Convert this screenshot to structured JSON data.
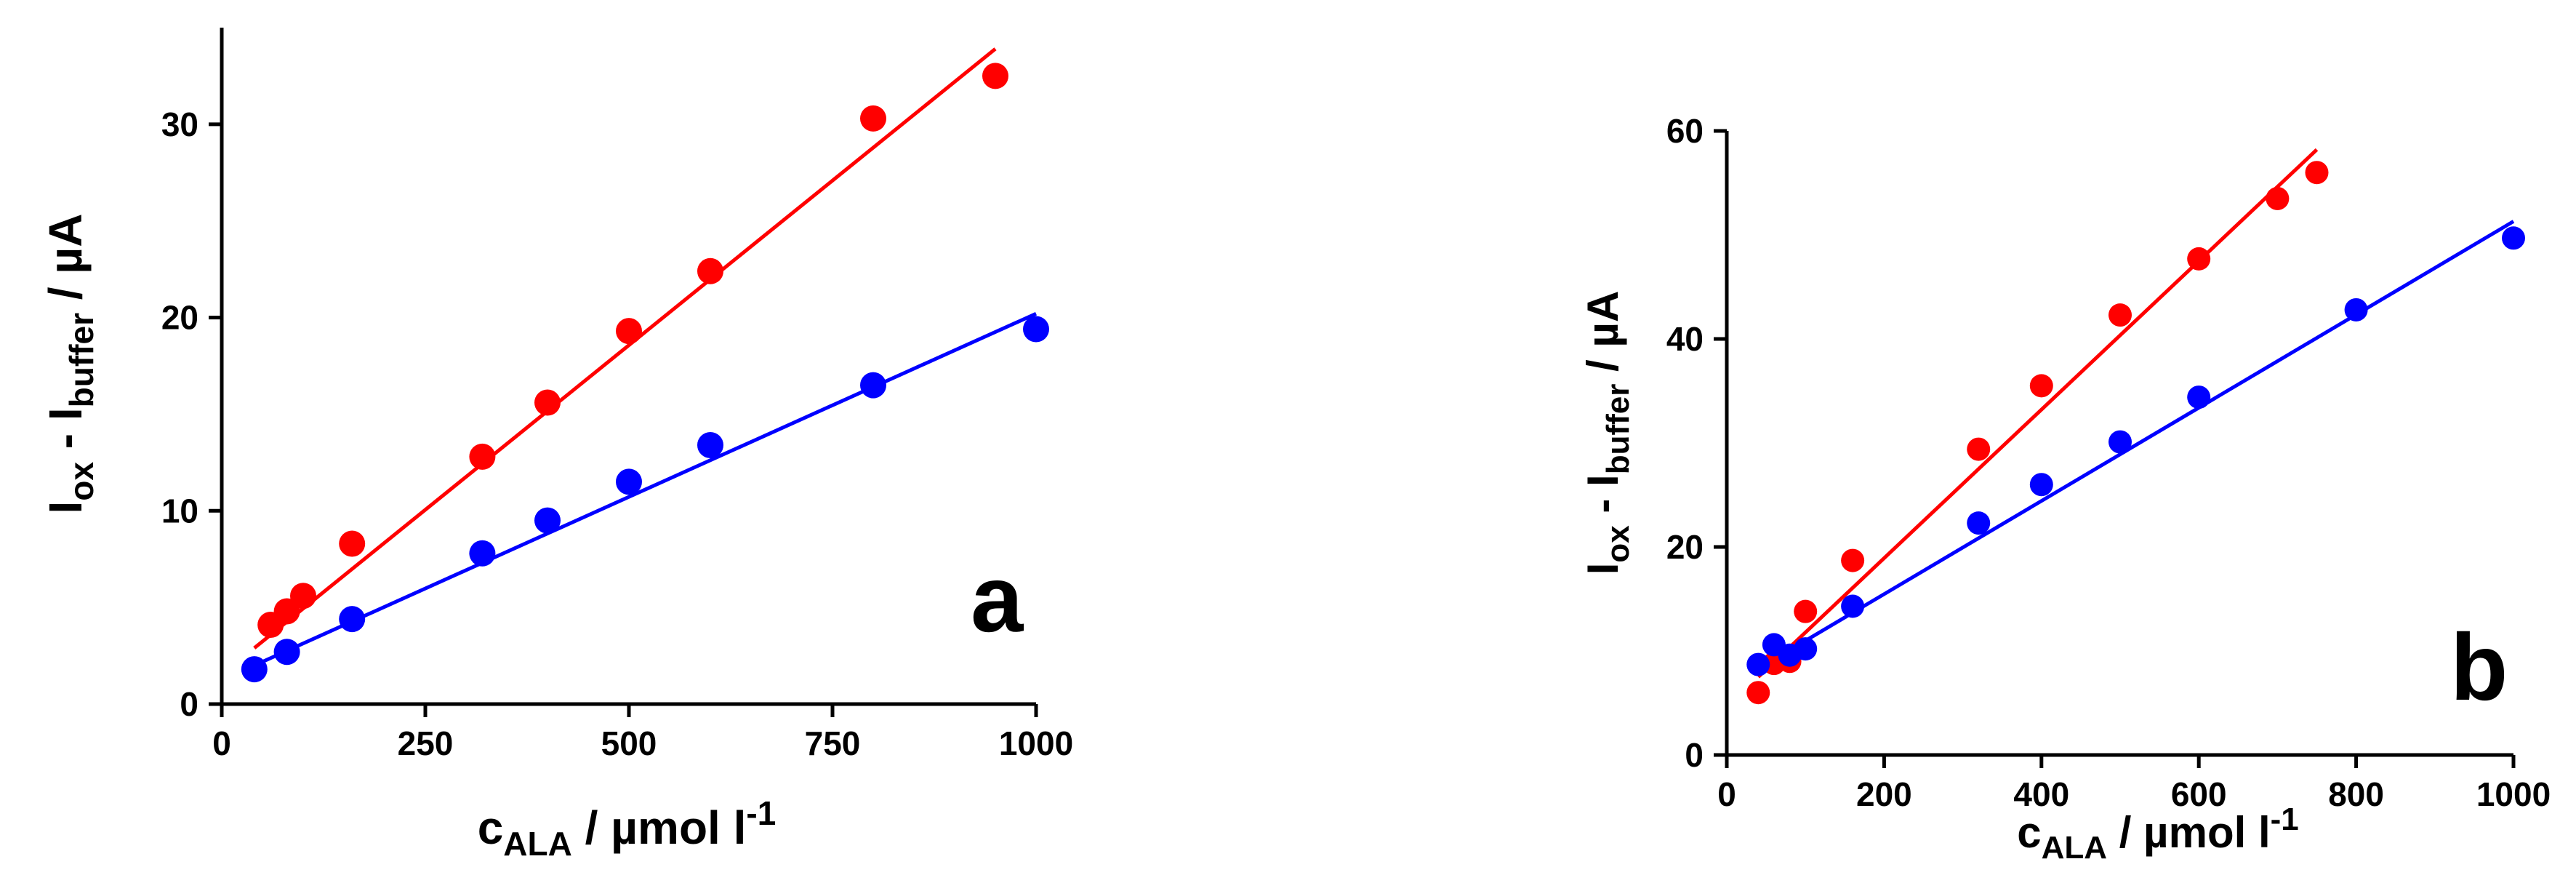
{
  "chart_data": [
    {
      "type": "scatter",
      "panel_label": "a",
      "xlabel": {
        "main": "c",
        "sub": "ALA",
        "rest": " / µmol l",
        "sup": "-1"
      },
      "ylabel": {
        "i1": "I",
        "s1": "ox",
        "mid": " - I",
        "s2": "buffer",
        "rest": " / µA"
      },
      "xlim": [
        0,
        1000
      ],
      "ylim": [
        0,
        35
      ],
      "xticks": [
        0,
        250,
        500,
        750,
        1000
      ],
      "xtick_labels": [
        "0",
        "250",
        "500",
        "750",
        "1000"
      ],
      "yticks": [
        0,
        10,
        20,
        30
      ],
      "ytick_labels": [
        "0",
        "10",
        "20",
        "30"
      ],
      "grid": false,
      "series": [
        {
          "name": "red",
          "color": "#ff0000",
          "x": [
            60,
            80,
            100,
            160,
            320,
            400,
            500,
            600,
            800,
            950
          ],
          "y": [
            4.1,
            4.8,
            5.6,
            8.3,
            12.8,
            15.6,
            19.3,
            22.4,
            30.3,
            32.5
          ],
          "fit": {
            "x": [
              40,
              950
            ],
            "y": [
              2.9,
              33.9
            ]
          }
        },
        {
          "name": "blue",
          "color": "#0000ff",
          "x": [
            40,
            80,
            160,
            320,
            400,
            500,
            600,
            800,
            1000
          ],
          "y": [
            1.8,
            2.7,
            4.4,
            7.8,
            9.5,
            11.5,
            13.4,
            16.5,
            19.4
          ],
          "fit": {
            "x": [
              40,
              1000
            ],
            "y": [
              2.0,
              20.2
            ]
          }
        }
      ]
    },
    {
      "type": "scatter",
      "panel_label": "b",
      "xlabel": {
        "main": "c",
        "sub": "ALA",
        "rest": " / µmol l",
        "sup": "-1"
      },
      "ylabel": {
        "i1": "I",
        "s1": "ox",
        "mid": " - I",
        "s2": "buffer",
        "rest": " / µA"
      },
      "xlim": [
        0,
        1000
      ],
      "ylim": [
        0,
        60
      ],
      "xticks": [
        0,
        200,
        400,
        600,
        800,
        1000
      ],
      "xtick_labels": [
        "0",
        "200",
        "400",
        "600",
        "800",
        "1000"
      ],
      "yticks": [
        0,
        20,
        40,
        60
      ],
      "ytick_labels": [
        "0",
        "20",
        "40",
        "60"
      ],
      "grid": false,
      "series": [
        {
          "name": "red",
          "color": "#ff0000",
          "x": [
            40,
            60,
            80,
            100,
            160,
            320,
            400,
            500,
            600,
            700,
            750
          ],
          "y": [
            6.0,
            8.8,
            9.0,
            13.8,
            18.7,
            29.4,
            35.5,
            42.3,
            47.7,
            53.5,
            56.0
          ],
          "fit": {
            "x": [
              40,
              750
            ],
            "y": [
              7.5,
              58.2
            ]
          }
        },
        {
          "name": "blue",
          "color": "#0000ff",
          "x": [
            40,
            60,
            80,
            100,
            160,
            320,
            400,
            500,
            600,
            800,
            1000
          ],
          "y": [
            8.7,
            10.6,
            9.6,
            10.2,
            14.3,
            22.3,
            26.0,
            30.1,
            34.4,
            42.8,
            49.7
          ],
          "fit": {
            "x": [
              40,
              1000
            ],
            "y": [
              8.3,
              51.3
            ]
          }
        }
      ]
    }
  ]
}
